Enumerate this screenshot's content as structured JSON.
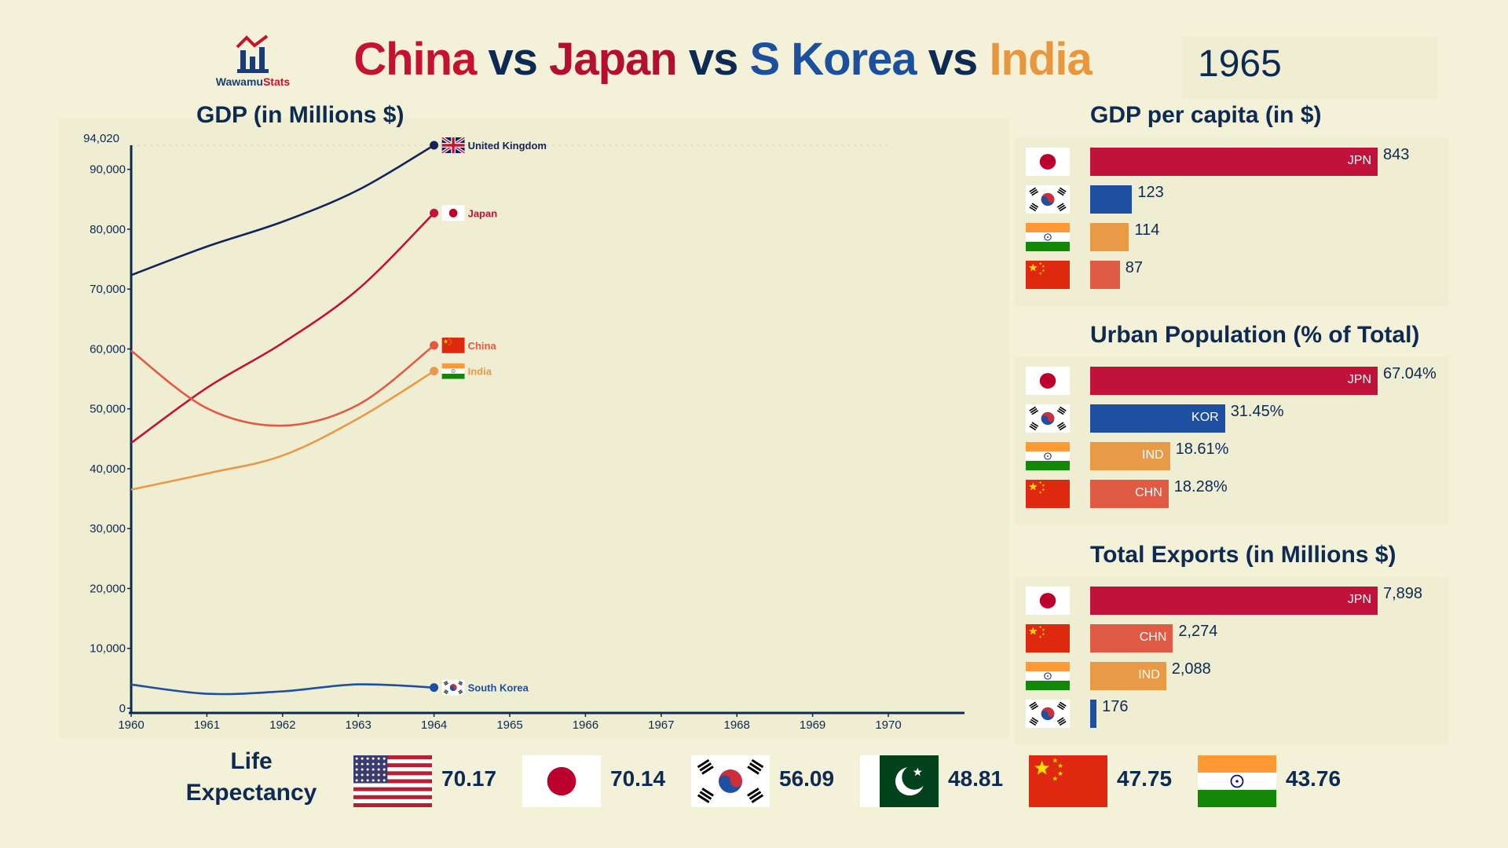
{
  "header": {
    "logo_text_a": "Wawamu",
    "logo_text_b": "Stats",
    "title_parts": [
      "China",
      " vs ",
      "Japan",
      " vs ",
      "S Korea",
      " vs ",
      "India"
    ],
    "year": "1965"
  },
  "colors": {
    "china": "#e05a44",
    "japan": "#c0123a",
    "korea": "#1e4fa0",
    "india": "#e89a46",
    "uk": "#14245a",
    "navy": "#0d2a52",
    "background": "#f3f1d8"
  },
  "chart_data": [
    {
      "type": "line",
      "title": "GDP (in Millions $)",
      "xlabel": "",
      "ylabel": "",
      "x_ticks": [
        "1960",
        "1961",
        "1962",
        "1963",
        "1964",
        "1965",
        "1966",
        "1967",
        "1968",
        "1969",
        "1970"
      ],
      "xlim": [
        1960,
        1971
      ],
      "ylim": [
        0,
        94020
      ],
      "y_ticks": [
        0,
        10000,
        20000,
        30000,
        40000,
        50000,
        60000,
        70000,
        80000,
        90000
      ],
      "y_tick_labels": [
        "0",
        "10,000",
        "20,000",
        "30,000",
        "40,000",
        "50,000",
        "60,000",
        "70,000",
        "80,000",
        "90,000"
      ],
      "y_max_label": "94,020",
      "series": [
        {
          "name": "United Kingdom",
          "color_key": "uk",
          "x": [
            1960,
            1961,
            1962,
            1963,
            1964
          ],
          "values": [
            72330,
            77100,
            81250,
            86560,
            94020
          ]
        },
        {
          "name": "Japan",
          "color_key": "japan",
          "x": [
            1960,
            1961,
            1962,
            1963,
            1964
          ],
          "values": [
            44300,
            53510,
            61000,
            70000,
            82700
          ]
        },
        {
          "name": "China",
          "color_key": "china",
          "x": [
            1960,
            1961,
            1962,
            1963,
            1964
          ],
          "values": [
            59700,
            50100,
            47200,
            50700,
            60600
          ]
        },
        {
          "name": "India",
          "color_key": "india",
          "x": [
            1960,
            1961,
            1962,
            1963,
            1964
          ],
          "values": [
            36500,
            39200,
            42200,
            48400,
            56300
          ]
        },
        {
          "name": "South Korea",
          "color_key": "korea",
          "x": [
            1960,
            1961,
            1962,
            1963,
            1964
          ],
          "values": [
            3958,
            2418,
            2814,
            3988,
            3459
          ]
        }
      ]
    },
    {
      "type": "bar",
      "title": "GDP per capita (in $)",
      "categories": [
        "JPN",
        "KOR",
        "IND",
        "CHN"
      ],
      "labels": [
        "JPN",
        "",
        "",
        ""
      ],
      "value_labels": [
        "843",
        "123",
        "114",
        "87"
      ],
      "values": [
        843,
        123,
        114,
        87
      ],
      "color_keys": [
        "japan",
        "korea",
        "india",
        "china"
      ],
      "flags": [
        "japan",
        "korea",
        "india",
        "china"
      ],
      "xlim": [
        0,
        843
      ]
    },
    {
      "type": "bar",
      "title": "Urban Population (% of Total)",
      "categories": [
        "JPN",
        "KOR",
        "IND",
        "CHN"
      ],
      "labels": [
        "JPN",
        "KOR",
        "IND",
        "CHN"
      ],
      "value_labels": [
        "67.04%",
        "31.45%",
        "18.61%",
        "18.28%"
      ],
      "values": [
        67.04,
        31.45,
        18.61,
        18.28
      ],
      "color_keys": [
        "japan",
        "korea",
        "india",
        "china"
      ],
      "flags": [
        "japan",
        "korea",
        "india",
        "china"
      ],
      "xlim": [
        0,
        67.04
      ]
    },
    {
      "type": "bar",
      "title": "Total Exports (in Millions $)",
      "categories": [
        "JPN",
        "CHN",
        "IND",
        "KOR"
      ],
      "labels": [
        "JPN",
        "CHN",
        "IND",
        ""
      ],
      "value_labels": [
        "7,898",
        "2,274",
        "2,088",
        "176"
      ],
      "values": [
        7898,
        2274,
        2088,
        176
      ],
      "color_keys": [
        "japan",
        "china",
        "india",
        "korea"
      ],
      "flags": [
        "japan",
        "china",
        "india",
        "korea"
      ],
      "xlim": [
        0,
        7898
      ]
    }
  ],
  "life_expectancy": {
    "label_line1": "Life",
    "label_line2": "Expectancy",
    "items": [
      {
        "flag": "usa",
        "value": "70.17"
      },
      {
        "flag": "japan",
        "value": "70.14"
      },
      {
        "flag": "korea",
        "value": "56.09"
      },
      {
        "flag": "pakistan",
        "value": "48.81"
      },
      {
        "flag": "china",
        "value": "47.75"
      },
      {
        "flag": "india",
        "value": "43.76"
      }
    ]
  }
}
